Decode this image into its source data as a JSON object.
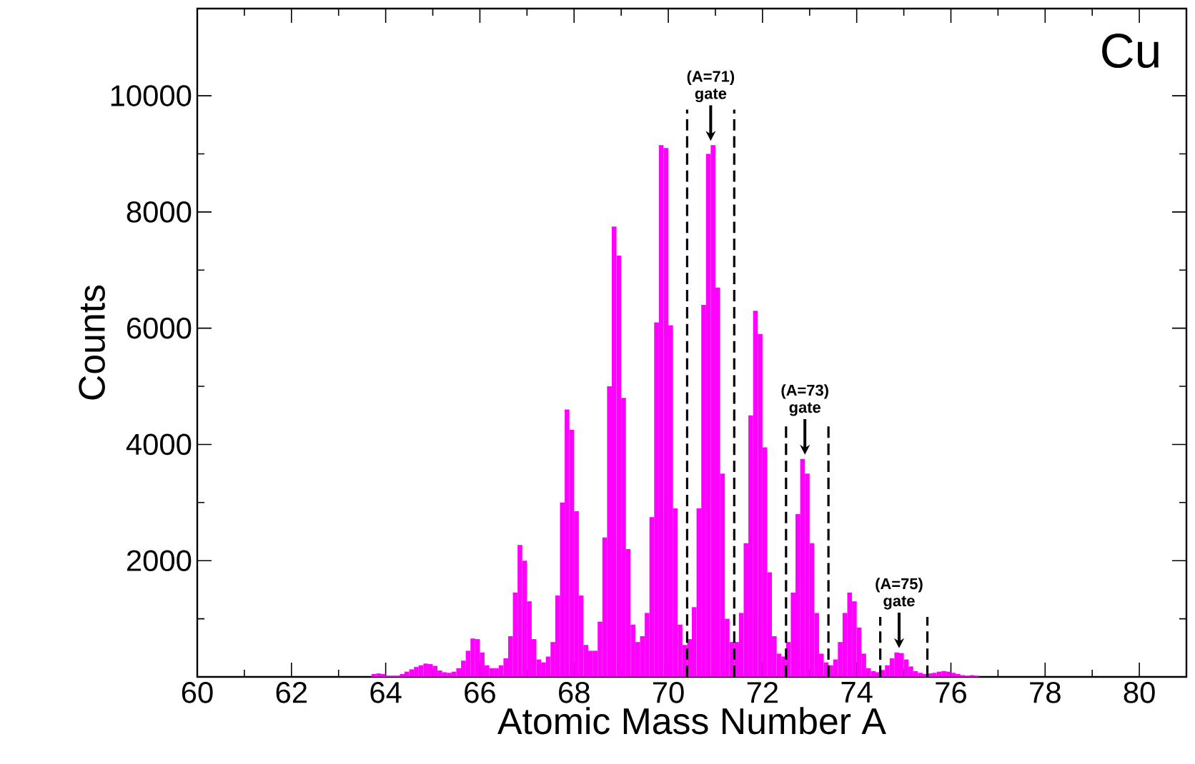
{
  "chart_data": {
    "type": "histogram",
    "xlabel": "Atomic Mass Number A",
    "ylabel": "Counts",
    "color": "#ff00ff",
    "bins": [
      63.7,
      63.8,
      63.9,
      64.0,
      64.1,
      64.2,
      64.3,
      64.4,
      64.5,
      64.6,
      64.7,
      64.8,
      64.9,
      65.0,
      65.1,
      65.2,
      65.3,
      65.4,
      65.5,
      65.6,
      65.7,
      65.8,
      65.9,
      66.0,
      66.1,
      66.2,
      66.3,
      66.4,
      66.5,
      66.6,
      66.7,
      66.8,
      66.9,
      67.0,
      67.1,
      67.2,
      67.3,
      67.4,
      67.5,
      67.6,
      67.7,
      67.8,
      67.9,
      68.0,
      68.1,
      68.2,
      68.3,
      68.4,
      68.5,
      68.6,
      68.7,
      68.8,
      68.9,
      69.0,
      69.1,
      69.2,
      69.3,
      69.4,
      69.5,
      69.6,
      69.7,
      69.8,
      69.9,
      70.0,
      70.1,
      70.2,
      70.3,
      70.4,
      70.5,
      70.6,
      70.7,
      70.8,
      70.9,
      71.0,
      71.1,
      71.2,
      71.3,
      71.4,
      71.5,
      71.6,
      71.7,
      71.8,
      71.9,
      72.0,
      72.1,
      72.2,
      72.3,
      72.4,
      72.5,
      72.6,
      72.7,
      72.8,
      72.9,
      73.0,
      73.1,
      73.2,
      73.3,
      73.4,
      73.5,
      73.6,
      73.7,
      73.8,
      73.9,
      74.0,
      74.1,
      74.2,
      74.3,
      74.4,
      74.5,
      74.6,
      74.7,
      74.8,
      74.9,
      75.0,
      75.1,
      75.2,
      75.3,
      75.4,
      75.5,
      75.6,
      75.7,
      75.8,
      75.9,
      76.0,
      76.1,
      76.2,
      76.3,
      76.4,
      76.5,
      76.6
    ],
    "values": [
      50,
      60,
      50,
      20,
      20,
      20,
      50,
      90,
      130,
      170,
      200,
      230,
      220,
      190,
      110,
      80,
      70,
      90,
      150,
      280,
      450,
      660,
      650,
      420,
      200,
      150,
      150,
      200,
      320,
      700,
      1450,
      2270,
      2000,
      1300,
      650,
      300,
      250,
      350,
      600,
      1400,
      3000,
      4600,
      4250,
      2850,
      1400,
      550,
      450,
      450,
      950,
      2400,
      5000,
      7750,
      7250,
      4800,
      2200,
      900,
      600,
      700,
      1100,
      2750,
      6100,
      9150,
      9100,
      6050,
      2900,
      900,
      550,
      650,
      1200,
      2900,
      6400,
      9000,
      9150,
      6700,
      3500,
      1000,
      600,
      600,
      1100,
      2300,
      4500,
      6300,
      5900,
      3950,
      1800,
      700,
      400,
      350,
      600,
      1450,
      2800,
      3750,
      3500,
      2300,
      1100,
      400,
      250,
      200,
      300,
      600,
      1100,
      1450,
      1300,
      850,
      400,
      150,
      100,
      80,
      120,
      200,
      320,
      420,
      410,
      300,
      180,
      100,
      70,
      50,
      60,
      70,
      90,
      100,
      90,
      70,
      50,
      30,
      20,
      30,
      20
    ],
    "xlim": [
      60,
      81
    ],
    "ylim": [
      0,
      11500
    ],
    "xticks": [
      60,
      62,
      64,
      66,
      68,
      70,
      72,
      74,
      76,
      78,
      80
    ],
    "yticks": [
      {
        "value": 0,
        "label": null
      },
      2000,
      4000,
      6000,
      8000,
      10000
    ],
    "ref_lines": [
      {
        "axis": "x",
        "value": 70.4,
        "color": "#000000",
        "line_style": "dashed"
      },
      {
        "axis": "x",
        "value": 71.4,
        "color": "#000000",
        "line_style": "dashed"
      },
      {
        "axis": "x",
        "value": 72.5,
        "color": "#000000",
        "line_style": "dashed"
      },
      {
        "axis": "x",
        "value": 73.4,
        "color": "#000000",
        "line_style": "dashed"
      },
      {
        "axis": "x",
        "value": 74.5,
        "color": "#000000",
        "line_style": "dashed"
      },
      {
        "axis": "x",
        "value": 75.5,
        "color": "#000000",
        "line_style": "dashed"
      }
    ],
    "annotations": [
      {
        "text": "(A=71) gate",
        "x": 70.9,
        "y": 9150
      },
      {
        "text": "(A=73) gate",
        "x": 72.9,
        "y": 3750
      },
      {
        "text": "(A=75) gate",
        "x": 74.9,
        "y": 420
      },
      "Cu"
    ],
    "grid": false
  }
}
